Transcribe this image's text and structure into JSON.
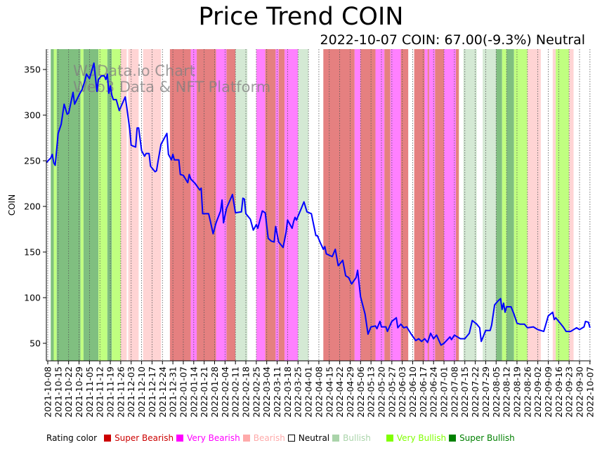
{
  "chart_data": {
    "type": "line",
    "title": "Price Trend COIN",
    "subtitle": "2022-10-07 COIN: 67.00(-9.3%) Neutral",
    "xlabel": "",
    "ylabel": "COIN",
    "ylim": [
      31,
      372
    ],
    "yticks": [
      50,
      100,
      150,
      200,
      250,
      300,
      350
    ],
    "x_start_date": "2021-10-08",
    "x_end_date": "2022-10-07",
    "xticks": [
      "2021-10-08",
      "2021-10-15",
      "2021-10-22",
      "2021-10-29",
      "2021-11-05",
      "2021-11-12",
      "2021-11-19",
      "2021-11-26",
      "2021-12-03",
      "2021-12-10",
      "2021-12-17",
      "2021-12-24",
      "2021-12-31",
      "2022-01-07",
      "2022-01-14",
      "2022-01-21",
      "2022-01-28",
      "2022-02-04",
      "2022-02-11",
      "2022-02-18",
      "2022-02-25",
      "2022-03-04",
      "2022-03-11",
      "2022-03-18",
      "2022-03-25",
      "2022-04-01",
      "2022-04-08",
      "2022-04-15",
      "2022-04-22",
      "2022-04-29",
      "2022-05-06",
      "2022-05-13",
      "2022-05-20",
      "2022-05-27",
      "2022-06-03",
      "2022-06-10",
      "2022-06-17",
      "2022-06-24",
      "2022-07-01",
      "2022-07-08",
      "2022-07-15",
      "2022-07-22",
      "2022-07-29",
      "2022-08-05",
      "2022-08-12",
      "2022-08-19",
      "2022-08-26",
      "2022-09-02",
      "2022-09-09",
      "2022-09-16",
      "2022-09-23",
      "2022-09-30",
      "2022-10-07"
    ],
    "grid": "vertical dotted at x ticks",
    "watermark": [
      "W3Data.io Chart",
      "Web3 Data & NFT Platform"
    ],
    "series": [
      {
        "name": "COIN",
        "color": "#0000ff",
        "points_day_price": [
          [
            -1,
            248
          ],
          [
            2,
            253
          ],
          [
            3,
            257
          ],
          [
            4,
            248
          ],
          [
            5,
            245
          ],
          [
            7,
            280
          ],
          [
            9,
            290
          ],
          [
            11,
            312
          ],
          [
            13,
            301
          ],
          [
            14,
            302
          ],
          [
            17,
            325
          ],
          [
            18,
            312
          ],
          [
            21,
            322
          ],
          [
            23,
            328
          ],
          [
            25,
            338
          ],
          [
            26,
            345
          ],
          [
            28,
            340
          ],
          [
            31,
            357
          ],
          [
            33,
            326
          ],
          [
            34,
            339
          ],
          [
            36,
            343
          ],
          [
            38,
            343
          ],
          [
            39,
            339
          ],
          [
            40,
            345
          ],
          [
            41,
            324
          ],
          [
            42,
            332
          ],
          [
            43,
            322
          ],
          [
            44,
            317
          ],
          [
            46,
            317
          ],
          [
            48,
            305
          ],
          [
            52,
            320
          ],
          [
            53,
            309
          ],
          [
            55,
            285
          ],
          [
            56,
            267
          ],
          [
            59,
            265
          ],
          [
            60,
            286
          ],
          [
            61,
            286
          ],
          [
            63,
            261
          ],
          [
            65,
            255
          ],
          [
            66,
            258
          ],
          [
            68,
            258
          ],
          [
            69,
            244
          ],
          [
            72,
            238
          ],
          [
            73,
            239
          ],
          [
            74,
            249
          ],
          [
            76,
            268
          ],
          [
            80,
            280
          ],
          [
            81,
            257
          ],
          [
            83,
            251
          ],
          [
            84,
            257
          ],
          [
            85,
            251
          ],
          [
            88,
            251
          ],
          [
            89,
            235
          ],
          [
            91,
            234
          ],
          [
            94,
            226
          ],
          [
            95,
            235
          ],
          [
            96,
            230
          ],
          [
            99,
            225
          ],
          [
            102,
            218
          ],
          [
            103,
            220
          ],
          [
            104,
            192
          ],
          [
            108,
            192
          ],
          [
            109,
            185
          ],
          [
            111,
            170
          ],
          [
            113,
            182
          ],
          [
            116,
            195
          ],
          [
            117,
            207
          ],
          [
            118,
            182
          ],
          [
            120,
            198
          ],
          [
            124,
            213
          ],
          [
            126,
            193
          ],
          [
            130,
            194
          ],
          [
            131,
            209
          ],
          [
            132,
            208
          ],
          [
            133,
            192
          ],
          [
            136,
            186
          ],
          [
            138,
            174
          ],
          [
            140,
            180
          ],
          [
            141,
            176
          ],
          [
            144,
            195
          ],
          [
            146,
            193
          ],
          [
            148,
            165
          ],
          [
            150,
            162
          ],
          [
            152,
            161
          ],
          [
            153,
            178
          ],
          [
            155,
            161
          ],
          [
            158,
            155
          ],
          [
            160,
            172
          ],
          [
            161,
            185
          ],
          [
            164,
            176
          ],
          [
            165,
            183
          ],
          [
            166,
            188
          ],
          [
            167,
            185
          ],
          [
            168,
            189
          ],
          [
            170,
            197
          ],
          [
            172,
            205
          ],
          [
            174,
            194
          ],
          [
            177,
            192
          ],
          [
            178,
            184
          ],
          [
            180,
            168
          ],
          [
            181,
            168
          ],
          [
            183,
            160
          ],
          [
            185,
            153
          ],
          [
            186,
            156
          ],
          [
            187,
            148
          ],
          [
            191,
            145
          ],
          [
            193,
            153
          ],
          [
            195,
            135
          ],
          [
            198,
            141
          ],
          [
            200,
            124
          ],
          [
            202,
            122
          ],
          [
            204,
            115
          ],
          [
            207,
            122
          ],
          [
            208,
            130
          ],
          [
            210,
            101
          ],
          [
            213,
            82
          ],
          [
            215,
            60
          ],
          [
            217,
            68
          ],
          [
            220,
            69
          ],
          [
            221,
            66
          ],
          [
            223,
            74
          ],
          [
            224,
            68
          ],
          [
            225,
            68
          ],
          [
            227,
            68
          ],
          [
            228,
            63
          ],
          [
            231,
            74
          ],
          [
            234,
            78
          ],
          [
            235,
            67
          ],
          [
            237,
            71
          ],
          [
            239,
            67
          ],
          [
            241,
            68
          ],
          [
            244,
            60
          ],
          [
            247,
            53
          ],
          [
            249,
            55
          ],
          [
            251,
            52
          ],
          [
            253,
            55
          ],
          [
            255,
            51
          ],
          [
            257,
            61
          ],
          [
            259,
            55
          ],
          [
            261,
            59
          ],
          [
            264,
            48
          ],
          [
            266,
            50
          ],
          [
            270,
            57
          ],
          [
            271,
            54
          ],
          [
            273,
            59
          ],
          [
            277,
            55
          ],
          [
            280,
            55
          ],
          [
            283,
            61
          ],
          [
            285,
            75
          ],
          [
            288,
            71
          ],
          [
            290,
            67
          ],
          [
            291,
            52
          ],
          [
            294,
            64
          ],
          [
            297,
            64
          ],
          [
            298,
            70
          ],
          [
            300,
            92
          ],
          [
            302,
            96
          ],
          [
            304,
            99
          ],
          [
            305,
            87
          ],
          [
            306,
            94
          ],
          [
            307,
            84
          ],
          [
            308,
            90
          ],
          [
            311,
            90
          ],
          [
            313,
            82
          ],
          [
            315,
            72
          ],
          [
            317,
            71
          ],
          [
            320,
            71
          ],
          [
            322,
            67
          ],
          [
            326,
            68
          ],
          [
            329,
            65
          ],
          [
            333,
            63
          ],
          [
            336,
            80
          ],
          [
            339,
            84
          ],
          [
            340,
            76
          ],
          [
            341,
            78
          ],
          [
            344,
            72
          ],
          [
            346,
            68
          ],
          [
            348,
            63
          ],
          [
            351,
            63
          ],
          [
            354,
            66
          ],
          [
            355,
            67
          ],
          [
            357,
            65
          ],
          [
            360,
            68
          ],
          [
            361,
            74
          ],
          [
            363,
            73
          ],
          [
            364,
            67
          ]
        ]
      }
    ],
    "rating_bands": [
      {
        "from_day": 2,
        "to_day": 4,
        "rating": "Super Bullish"
      },
      {
        "from_day": 4,
        "to_day": 6,
        "rating": "Very Bullish"
      },
      {
        "from_day": 6,
        "to_day": 22,
        "rating": "Super Bullish"
      },
      {
        "from_day": 22,
        "to_day": 24,
        "rating": "Very Bullish"
      },
      {
        "from_day": 24,
        "to_day": 34,
        "rating": "Super Bullish"
      },
      {
        "from_day": 34,
        "to_day": 40,
        "rating": "Very Bullish"
      },
      {
        "from_day": 40,
        "to_day": 43,
        "rating": "Super Bullish"
      },
      {
        "from_day": 43,
        "to_day": 49,
        "rating": "Very Bullish"
      },
      {
        "from_day": 49,
        "to_day": 53,
        "rating": "Bearish"
      },
      {
        "from_day": 54,
        "to_day": 61,
        "rating": "Bearish"
      },
      {
        "from_day": 64,
        "to_day": 76,
        "rating": "Bearish"
      },
      {
        "from_day": 82,
        "to_day": 96,
        "rating": "Super Bearish"
      },
      {
        "from_day": 96,
        "to_day": 100,
        "rating": "Very Bearish"
      },
      {
        "from_day": 100,
        "to_day": 113,
        "rating": "Super Bearish"
      },
      {
        "from_day": 113,
        "to_day": 120,
        "rating": "Very Bearish"
      },
      {
        "from_day": 120,
        "to_day": 126,
        "rating": "Super Bearish"
      },
      {
        "from_day": 126,
        "to_day": 134,
        "rating": "Bullish"
      },
      {
        "from_day": 140,
        "to_day": 146,
        "rating": "Very Bearish"
      },
      {
        "from_day": 146,
        "to_day": 153,
        "rating": "Super Bearish"
      },
      {
        "from_day": 153,
        "to_day": 155,
        "rating": "Very Bearish"
      },
      {
        "from_day": 155,
        "to_day": 159,
        "rating": "Super Bearish"
      },
      {
        "from_day": 159,
        "to_day": 168,
        "rating": "Very Bearish"
      },
      {
        "from_day": 168,
        "to_day": 175,
        "rating": "Bullish"
      },
      {
        "from_day": 185,
        "to_day": 206,
        "rating": "Super Bearish"
      },
      {
        "from_day": 206,
        "to_day": 210,
        "rating": "Very Bearish"
      },
      {
        "from_day": 210,
        "to_day": 220,
        "rating": "Super Bearish"
      },
      {
        "from_day": 220,
        "to_day": 226,
        "rating": "Very Bearish"
      },
      {
        "from_day": 226,
        "to_day": 230,
        "rating": "Super Bearish"
      },
      {
        "from_day": 230,
        "to_day": 237,
        "rating": "Very Bearish"
      },
      {
        "from_day": 237,
        "to_day": 242,
        "rating": "Super Bearish"
      },
      {
        "from_day": 246,
        "to_day": 253,
        "rating": "Super Bearish"
      },
      {
        "from_day": 253,
        "to_day": 255,
        "rating": "Very Bearish"
      },
      {
        "from_day": 255,
        "to_day": 256,
        "rating": "Super Bearish"
      },
      {
        "from_day": 256,
        "to_day": 260,
        "rating": "Very Bearish"
      },
      {
        "from_day": 260,
        "to_day": 266,
        "rating": "Super Bearish"
      },
      {
        "from_day": 266,
        "to_day": 274,
        "rating": "Very Bearish"
      },
      {
        "from_day": 274,
        "to_day": 276,
        "rating": "Super Bearish"
      },
      {
        "from_day": 279,
        "to_day": 288,
        "rating": "Bullish"
      },
      {
        "from_day": 292,
        "to_day": 301,
        "rating": "Bullish"
      },
      {
        "from_day": 301,
        "to_day": 305,
        "rating": "Super Bullish"
      },
      {
        "from_day": 305,
        "to_day": 308,
        "rating": "Very Bullish"
      },
      {
        "from_day": 308,
        "to_day": 313,
        "rating": "Super Bullish"
      },
      {
        "from_day": 313,
        "to_day": 322,
        "rating": "Very Bullish"
      },
      {
        "from_day": 322,
        "to_day": 331,
        "rating": "Bearish"
      },
      {
        "from_day": 339,
        "to_day": 341,
        "rating": "Bearish"
      },
      {
        "from_day": 341,
        "to_day": 350,
        "rating": "Very Bullish"
      },
      {
        "from_day": 350,
        "to_day": 353,
        "rating": "Bearish"
      }
    ]
  },
  "legend": {
    "title": "Rating color",
    "items": [
      {
        "label": "Super Bearish",
        "swatch": "#cc0000",
        "text_color": "#cc0000"
      },
      {
        "label": "Very Bearish",
        "swatch": "#ff00ff",
        "text_color": "#ff00ff"
      },
      {
        "label": "Bearish",
        "swatch": "#ffaaaa",
        "text_color": "#ffaaaa"
      },
      {
        "label": "Neutral",
        "swatch": "#ffffff",
        "text_color": "#000000"
      },
      {
        "label": "Bullish",
        "swatch": "#aad4aa",
        "text_color": "#aad4aa"
      },
      {
        "label": "Very Bullish",
        "swatch": "#80ff00",
        "text_color": "#80ff00"
      },
      {
        "label": "Super Bullish",
        "swatch": "#008000",
        "text_color": "#008000"
      }
    ]
  },
  "band_fill_colors": {
    "Super Bearish": "#e58080",
    "Very Bearish": "#ff80ff",
    "Bearish": "#ffd4d4",
    "Bullish": "#d4e9d4",
    "Very Bullish": "#c0ff80",
    "Super Bullish": "#80bf80"
  }
}
